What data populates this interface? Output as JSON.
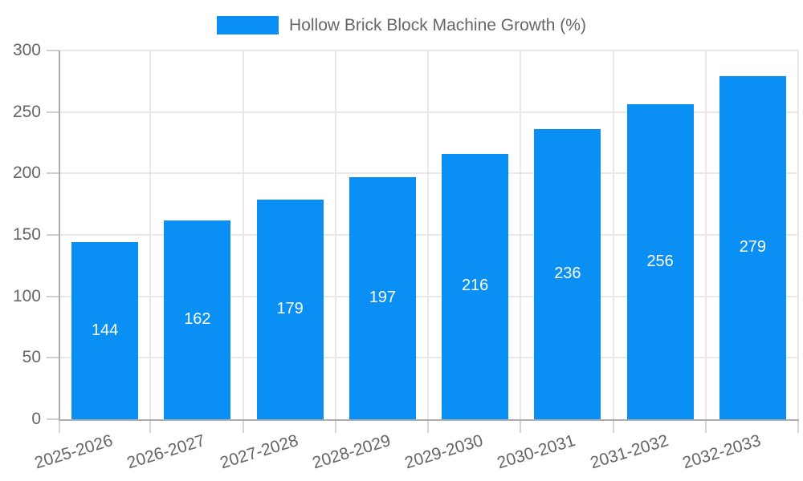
{
  "legend": {
    "label": "Hollow Brick Block Machine Growth (%)"
  },
  "chart_data": {
    "type": "bar",
    "title": "Hollow Brick Block Machine Growth (%)",
    "categories": [
      "2025-2026",
      "2026-2027",
      "2027-2028",
      "2028-2029",
      "2029-2030",
      "2030-2031",
      "2031-2032",
      "2032-2033"
    ],
    "values": [
      144,
      162,
      179,
      197,
      216,
      236,
      256,
      279
    ],
    "xlabel": "",
    "ylabel": "",
    "ylim": [
      0,
      300
    ],
    "yticks": [
      0,
      50,
      100,
      150,
      200,
      250,
      300
    ],
    "grid": true,
    "legend_position": "top-center",
    "value_labels": "inside-center",
    "x_label_rotation_deg": -17
  },
  "colors": {
    "bar": "#0a90f5",
    "value_label": "#ffffff",
    "axis_text": "#666666",
    "gridline": "#e8e8e8",
    "axis_line": "#acacac",
    "background": "#ffffff"
  }
}
